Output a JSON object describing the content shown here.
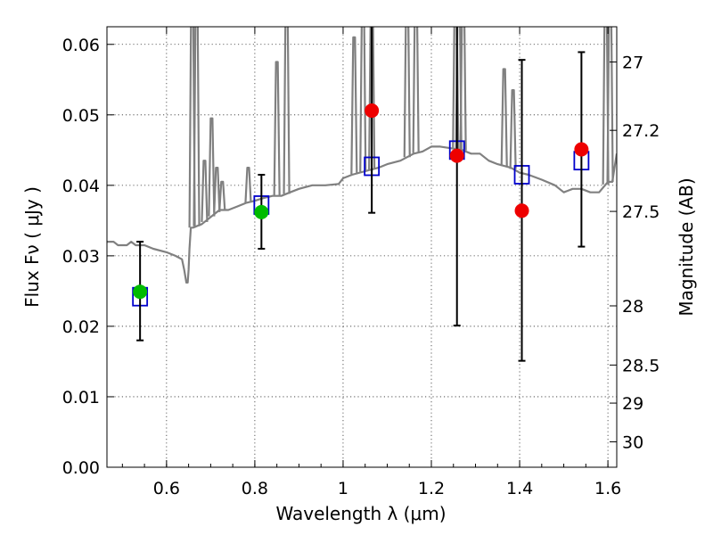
{
  "chart_data": {
    "type": "scatter",
    "xlabel": "Wavelength  λ (μm)",
    "ylabel": "Flux  Fν  ( μJy )",
    "ylabel_right": "Magnitude (AB)",
    "xlim": [
      0.465,
      1.62
    ],
    "ylim": [
      0.0,
      0.0625
    ],
    "grid": true,
    "x_ticks": [
      0.6,
      0.8,
      1.0,
      1.2,
      1.4,
      1.6
    ],
    "x_tick_labels": [
      "0.6",
      "0.8",
      "1",
      "1.2",
      "1.4",
      "1.6"
    ],
    "y_ticks": [
      0.0,
      0.01,
      0.02,
      0.03,
      0.04,
      0.05,
      0.06
    ],
    "y_tick_labels": [
      "0.00",
      "0.01",
      "0.02",
      "0.03",
      "0.04",
      "0.05",
      "0.06"
    ],
    "right_ticks": [
      {
        "label": "27",
        "flux": 0.0575
      },
      {
        "label": "27.2",
        "flux": 0.0478
      },
      {
        "label": "27.5",
        "flux": 0.0363
      },
      {
        "label": "28",
        "flux": 0.0229
      },
      {
        "label": "28.5",
        "flux": 0.0145
      },
      {
        "label": "29",
        "flux": 0.0091
      },
      {
        "label": "30",
        "flux": 0.0036
      }
    ],
    "colors": {
      "model": "#808080",
      "green": "#00bb00",
      "red": "#ee0000",
      "square": "#0000cc",
      "errorbar": "#000000"
    },
    "series": [
      {
        "name": "model spectrum",
        "style": "line",
        "x": [
          0.465,
          0.48,
          0.49,
          0.5,
          0.51,
          0.52,
          0.53,
          0.55,
          0.57,
          0.6,
          0.62,
          0.635,
          0.64,
          0.645,
          0.648,
          0.65,
          0.652,
          0.655,
          0.66,
          0.68,
          0.7,
          0.72,
          0.74,
          0.76,
          0.78,
          0.8,
          0.82,
          0.84,
          0.86,
          0.88,
          0.9,
          0.93,
          0.96,
          0.99,
          1.0,
          1.02,
          1.05,
          1.08,
          1.1,
          1.13,
          1.16,
          1.18,
          1.2,
          1.22,
          1.25,
          1.27,
          1.29,
          1.31,
          1.33,
          1.35,
          1.38,
          1.4,
          1.42,
          1.45,
          1.48,
          1.5,
          1.52,
          1.54,
          1.56,
          1.58,
          1.6,
          1.61,
          1.62
        ],
        "y": [
          0.032,
          0.032,
          0.0315,
          0.0315,
          0.0315,
          0.032,
          0.0315,
          0.0315,
          0.031,
          0.0305,
          0.03,
          0.0295,
          0.028,
          0.0262,
          0.0262,
          0.028,
          0.031,
          0.034,
          0.034,
          0.0345,
          0.0355,
          0.0365,
          0.0365,
          0.037,
          0.0375,
          0.0378,
          0.0382,
          0.0385,
          0.0385,
          0.039,
          0.0395,
          0.04,
          0.04,
          0.0402,
          0.041,
          0.0415,
          0.042,
          0.0425,
          0.043,
          0.0435,
          0.0445,
          0.0448,
          0.0455,
          0.0455,
          0.0452,
          0.045,
          0.0445,
          0.0445,
          0.0435,
          0.043,
          0.0425,
          0.0418,
          0.0415,
          0.0408,
          0.04,
          0.039,
          0.0395,
          0.0395,
          0.039,
          0.039,
          0.0405,
          0.0405,
          0.0445
        ]
      },
      {
        "name": "model spikes",
        "style": "line",
        "segments": [
          {
            "x": 0.658,
            "top": 0.068
          },
          {
            "x": 0.668,
            "top": 0.068
          },
          {
            "x": 0.686,
            "top": 0.0435
          },
          {
            "x": 0.702,
            "top": 0.0495
          },
          {
            "x": 0.714,
            "top": 0.0425
          },
          {
            "x": 0.726,
            "top": 0.0405
          },
          {
            "x": 0.785,
            "top": 0.0425
          },
          {
            "x": 0.85,
            "top": 0.0575
          },
          {
            "x": 0.872,
            "top": 0.068
          },
          {
            "x": 1.025,
            "top": 0.061
          },
          {
            "x": 1.045,
            "top": 0.068
          },
          {
            "x": 1.065,
            "top": 0.068
          },
          {
            "x": 1.145,
            "top": 0.068
          },
          {
            "x": 1.165,
            "top": 0.068
          },
          {
            "x": 1.255,
            "top": 0.068
          },
          {
            "x": 1.262,
            "top": 0.068
          },
          {
            "x": 1.272,
            "top": 0.068
          },
          {
            "x": 1.365,
            "top": 0.0565
          },
          {
            "x": 1.385,
            "top": 0.0535
          },
          {
            "x": 1.595,
            "top": 0.068
          },
          {
            "x": 1.605,
            "top": 0.068
          }
        ]
      },
      {
        "name": "blue squares",
        "style": "marker",
        "x": [
          0.54,
          0.815,
          1.065,
          1.258,
          1.405,
          1.54
        ],
        "y": [
          0.0242,
          0.0372,
          0.0427,
          0.045,
          0.0415,
          0.0435
        ]
      },
      {
        "name": "error bars",
        "style": "errorbar",
        "x": [
          0.54,
          0.815,
          1.065,
          1.258,
          1.405,
          1.54
        ],
        "low": [
          0.018,
          0.031,
          0.0361,
          0.0201,
          0.0151,
          0.0313
        ],
        "high": [
          0.032,
          0.0415,
          0.0625,
          0.0625,
          0.0578,
          0.0589
        ]
      },
      {
        "name": "green points",
        "style": "marker",
        "x": [
          0.54,
          0.815
        ],
        "y": [
          0.0249,
          0.0362
        ]
      },
      {
        "name": "red points",
        "style": "marker",
        "x": [
          1.065,
          1.258,
          1.405,
          1.54
        ],
        "y": [
          0.0506,
          0.0442,
          0.0364,
          0.0451
        ]
      }
    ]
  }
}
